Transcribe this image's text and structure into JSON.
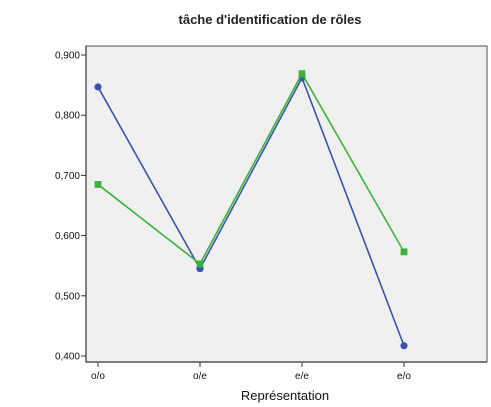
{
  "chart_data": {
    "type": "line",
    "title": "tâche d'identification de rôles",
    "xlabel": "Représentation",
    "ylabel": "",
    "categories": [
      "o/o",
      "o/e",
      "e/e",
      "e/o"
    ],
    "ylim": [
      0.39,
      0.915
    ],
    "yticks": [
      0.4,
      0.5,
      0.6,
      0.7,
      0.8,
      0.9
    ],
    "ytick_labels": [
      "0,400",
      "0,500",
      "0,600",
      "0,700",
      "0,800",
      "0,900"
    ],
    "grid": false,
    "series": [
      {
        "color": "#3a55a8",
        "marker": "circle",
        "values": [
          0.847,
          0.545,
          0.862,
          0.417
        ]
      },
      {
        "color": "#3bb33b",
        "marker": "square",
        "values": [
          0.685,
          0.553,
          0.869,
          0.573
        ]
      }
    ],
    "colors": {
      "plot_background": "#f0f0f0",
      "axis": "#333333"
    }
  }
}
